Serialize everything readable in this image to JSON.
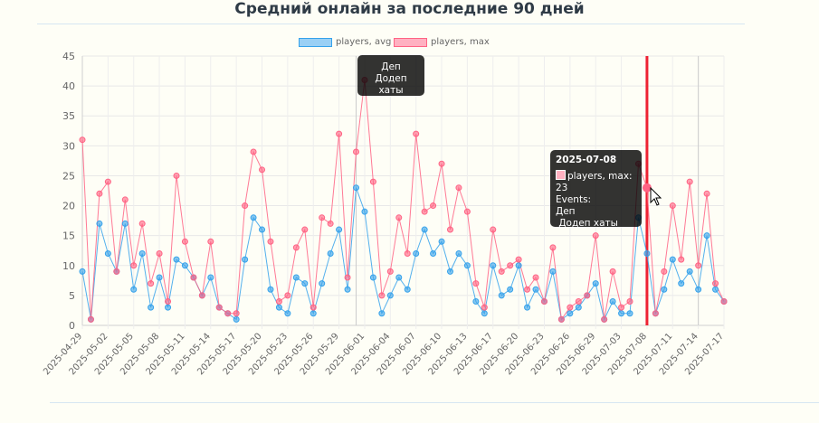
{
  "title": "Средний онлайн за последние 90 дней",
  "legend": [
    {
      "label": "players, avg",
      "color": "#36a2eb",
      "fill": "#9ad0f5"
    },
    {
      "label": "players, max",
      "color": "#ff6384",
      "fill": "#ffb1c1"
    }
  ],
  "tooltip_event": {
    "line1": "Деп",
    "line2": "Додеп хаты"
  },
  "tooltip_point": {
    "title": "2025-07-08",
    "series_line": "players, max: 23",
    "events_label": "Events:",
    "event1": "Деп",
    "event2": " Додеп хаты"
  },
  "chart_data": {
    "type": "line",
    "x_tick_labels": [
      "2025-04-29",
      "2025-05-02",
      "2025-05-05",
      "2025-05-08",
      "2025-05-11",
      "2025-05-14",
      "2025-05-17",
      "2025-05-20",
      "2025-05-23",
      "2025-05-26",
      "2025-05-29",
      "2025-06-01",
      "2025-06-04",
      "2025-06-07",
      "2025-06-10",
      "2025-06-13",
      "2025-06-17",
      "2025-06-20",
      "2025-06-23",
      "2025-06-26",
      "2025-06-29",
      "2025-07-03",
      "2025-07-08",
      "2025-07-11",
      "2025-07-14",
      "2025-07-17"
    ],
    "series": [
      {
        "name": "players, avg",
        "color": "#36a2eb",
        "values": [
          9,
          1,
          17,
          12,
          9,
          17,
          6,
          12,
          3,
          8,
          3,
          11,
          10,
          8,
          5,
          8,
          3,
          2,
          1,
          11,
          18,
          16,
          6,
          3,
          2,
          8,
          7,
          2,
          7,
          12,
          16,
          6,
          23,
          19,
          8,
          2,
          5,
          8,
          6,
          12,
          16,
          12,
          14,
          9,
          12,
          10,
          4,
          2,
          10,
          5,
          6,
          10,
          3,
          6,
          4,
          9,
          1,
          2,
          3,
          5,
          7,
          1,
          4,
          2,
          2,
          18,
          12,
          2,
          6,
          11,
          7,
          9,
          6,
          15,
          6,
          4
        ]
      },
      {
        "name": "players, max",
        "color": "#ff6384",
        "values": [
          31,
          1,
          22,
          24,
          9,
          21,
          10,
          17,
          7,
          12,
          4,
          25,
          14,
          8,
          5,
          14,
          3,
          2,
          2,
          20,
          29,
          26,
          14,
          4,
          5,
          13,
          16,
          3,
          18,
          17,
          32,
          8,
          29,
          41,
          24,
          5,
          9,
          18,
          12,
          32,
          19,
          20,
          27,
          16,
          23,
          19,
          7,
          3,
          16,
          9,
          10,
          11,
          6,
          8,
          4,
          13,
          1,
          3,
          4,
          5,
          15,
          1,
          9,
          3,
          4,
          27,
          23,
          2,
          9,
          20,
          11,
          24,
          10,
          22,
          7,
          4
        ]
      }
    ],
    "event_markers": [
      {
        "x_index": 32,
        "color": "#cccccc"
      },
      {
        "x_index": 66,
        "color": "#ee2233"
      },
      {
        "x_index": 72,
        "color": "#cccccc"
      }
    ],
    "highlighted_point": {
      "series": "players, max",
      "x_index": 66,
      "value": 23
    },
    "ylim": [
      0,
      45
    ],
    "y_ticks": [
      0,
      5,
      10,
      15,
      20,
      25,
      30,
      35,
      40,
      45
    ],
    "grid": true,
    "legend_position": "top"
  }
}
